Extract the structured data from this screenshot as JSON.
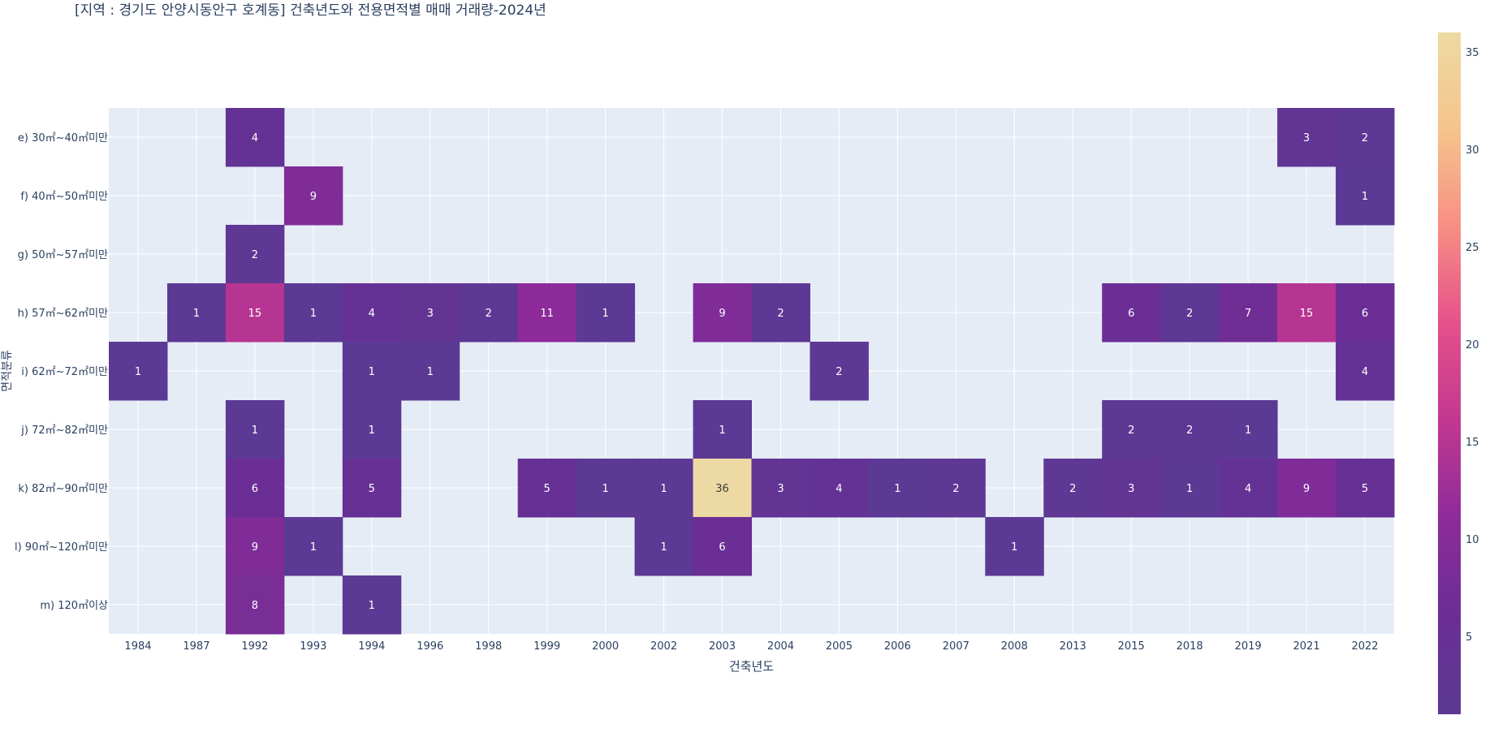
{
  "chart_data": {
    "type": "heatmap",
    "title": "[지역 : 경기도 안양시동안구 호계동] 건축년도와 전용면적별 매매 거래량-2024년",
    "xlabel": "건축년도",
    "ylabel": "면적분류",
    "x": [
      "1984",
      "1987",
      "1992",
      "1993",
      "1994",
      "1996",
      "1998",
      "1999",
      "2000",
      "2002",
      "2003",
      "2004",
      "2005",
      "2006",
      "2007",
      "2008",
      "2013",
      "2015",
      "2018",
      "2019",
      "2021",
      "2022"
    ],
    "y": [
      "e) 30㎡~40㎡미만",
      "f) 40㎡~50㎡미만",
      "g) 50㎡~57㎡미만",
      "h) 57㎡~62㎡미만",
      "i) 62㎡~72㎡미만",
      "j) 72㎡~82㎡미만",
      "k) 82㎡~90㎡미만",
      "l) 90㎡~120㎡미만",
      "m) 120㎡이상"
    ],
    "z": [
      [
        null,
        null,
        4,
        null,
        null,
        null,
        null,
        null,
        null,
        null,
        null,
        null,
        null,
        null,
        null,
        null,
        null,
        null,
        null,
        null,
        3,
        2
      ],
      [
        null,
        null,
        null,
        9,
        null,
        null,
        null,
        null,
        null,
        null,
        null,
        null,
        null,
        null,
        null,
        null,
        null,
        null,
        null,
        null,
        null,
        1
      ],
      [
        null,
        null,
        2,
        null,
        null,
        null,
        null,
        null,
        null,
        null,
        null,
        null,
        null,
        null,
        null,
        null,
        null,
        null,
        null,
        null,
        null,
        null
      ],
      [
        null,
        1,
        15,
        1,
        4,
        3,
        2,
        11,
        1,
        null,
        9,
        2,
        null,
        null,
        null,
        null,
        null,
        6,
        2,
        7,
        15,
        6
      ],
      [
        1,
        null,
        null,
        null,
        1,
        1,
        null,
        null,
        null,
        null,
        null,
        null,
        2,
        null,
        null,
        null,
        null,
        null,
        null,
        null,
        null,
        4
      ],
      [
        null,
        null,
        1,
        null,
        1,
        null,
        null,
        null,
        null,
        null,
        1,
        null,
        null,
        null,
        null,
        null,
        null,
        2,
        2,
        1,
        null,
        null
      ],
      [
        null,
        null,
        6,
        null,
        5,
        null,
        null,
        5,
        1,
        1,
        36,
        3,
        4,
        1,
        2,
        null,
        2,
        3,
        1,
        4,
        9,
        5
      ],
      [
        null,
        null,
        9,
        1,
        null,
        null,
        null,
        null,
        null,
        1,
        6,
        null,
        null,
        null,
        null,
        1,
        null,
        null,
        null,
        null,
        null,
        null
      ],
      [
        null,
        null,
        8,
        null,
        1,
        null,
        null,
        null,
        null,
        null,
        null,
        null,
        null,
        null,
        null,
        null,
        null,
        null,
        null,
        null,
        null,
        null
      ]
    ],
    "zmin": 1,
    "zmax": 36,
    "colorscale": [
      "#5c3994",
      "#6a2e95",
      "#8d2b9b",
      "#c13890",
      "#e4508a",
      "#f78e84",
      "#f6c48c",
      "#edd9a3"
    ],
    "colorbar_ticks": [
      5,
      10,
      15,
      20,
      25,
      30,
      35
    ],
    "grid": true,
    "background": "#e5ecf6"
  }
}
